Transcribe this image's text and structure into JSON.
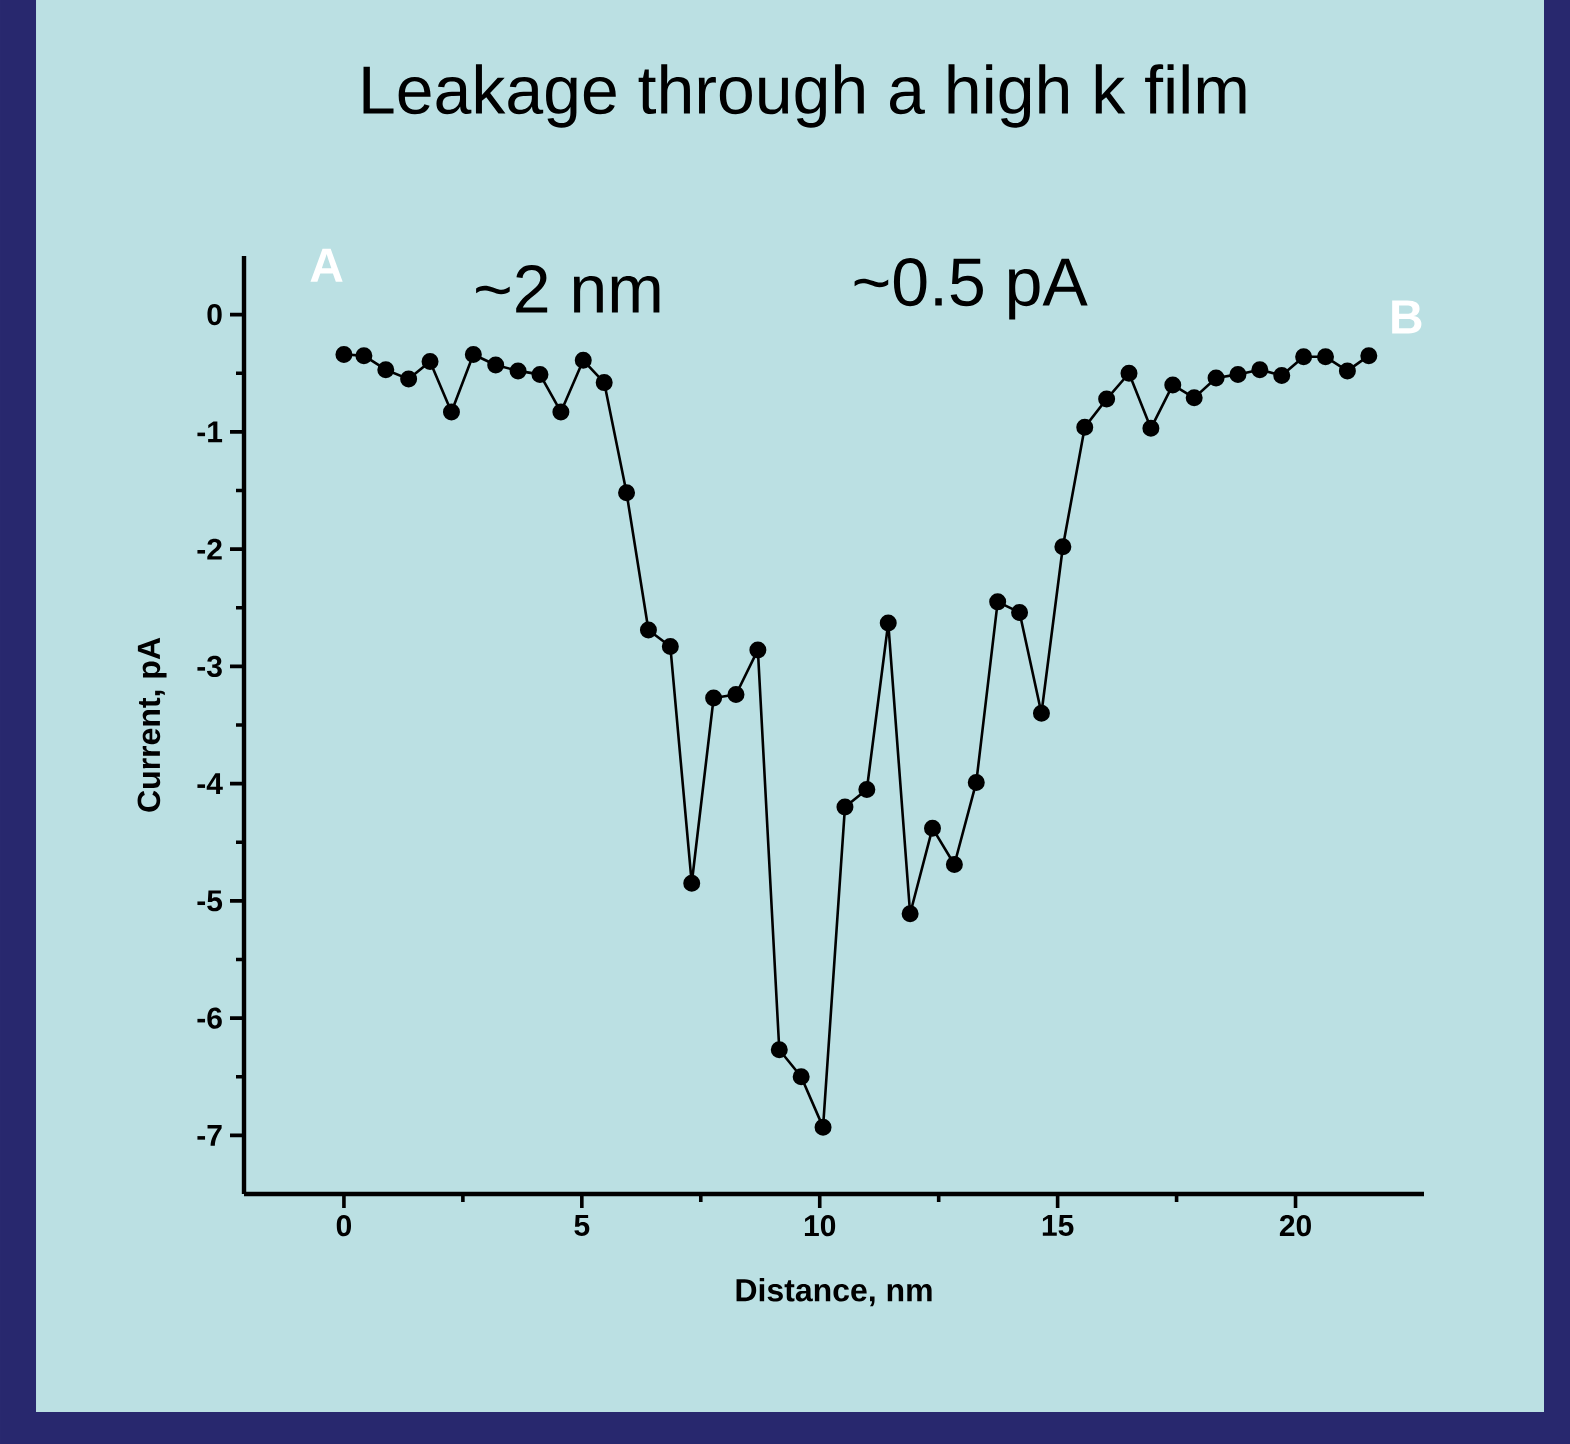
{
  "chart_data": {
    "type": "line",
    "title": "Leakage through a high k film",
    "xlabel": "Distance, nm",
    "ylabel": "Current, pA",
    "annotations": [
      "A",
      "~2 nm",
      "~0.5 pA",
      "B"
    ],
    "x": [
      0,
      0.42,
      0.88,
      1.36,
      1.81,
      2.26,
      2.72,
      3.19,
      3.66,
      4.12,
      4.56,
      5.03,
      5.47,
      5.94,
      6.4,
      6.86,
      7.31,
      7.77,
      8.24,
      8.7,
      9.15,
      9.61,
      10.07,
      10.53,
      10.99,
      11.44,
      11.9,
      12.37,
      12.83,
      13.29,
      13.74,
      14.2,
      14.66,
      15.11,
      15.57,
      16.03,
      16.5,
      16.96,
      17.42,
      17.87,
      18.33,
      18.79,
      19.25,
      19.71,
      20.17,
      20.63,
      21.09,
      21.54
    ],
    "series": [
      {
        "color": "#000000",
        "values": [
          -0.34,
          -0.35,
          -0.47,
          -0.55,
          -0.4,
          -0.83,
          -0.34,
          -0.43,
          -0.48,
          -0.51,
          -0.83,
          -0.39,
          -0.58,
          -1.52,
          -2.69,
          -2.83,
          -4.85,
          -3.27,
          -3.24,
          -2.86,
          -6.27,
          -6.5,
          -6.93,
          -4.2,
          -4.05,
          -2.63,
          -5.11,
          -4.38,
          -4.69,
          -3.99,
          -2.45,
          -2.54,
          -3.4,
          -1.98,
          -0.96,
          -0.72,
          -0.5,
          -0.97,
          -0.6,
          -0.71,
          -0.54,
          -0.51,
          -0.47,
          -0.52,
          -0.36,
          -0.36,
          -0.48,
          -0.35
        ]
      }
    ],
    "xlim": [
      -2.1,
      22.7
    ],
    "ylim": [
      -7.5,
      0.5
    ],
    "xticks": [
      0,
      5,
      10,
      15,
      20
    ],
    "yticks": [
      0,
      -1,
      -2,
      -3,
      -4,
      -5,
      -6,
      -7
    ],
    "marker": "circle",
    "line_style": "solid"
  }
}
